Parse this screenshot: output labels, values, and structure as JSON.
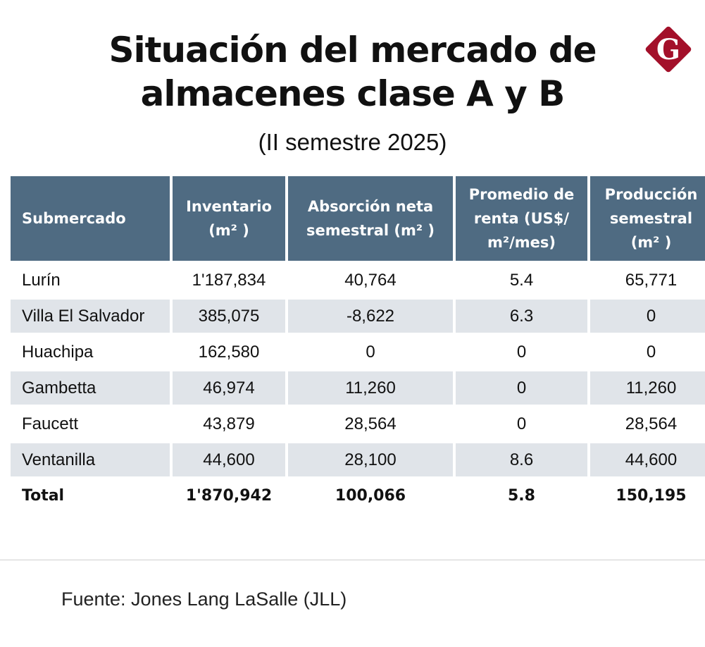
{
  "header": {
    "title_line1": "Situación del mercado de",
    "title_line2": "almacenes clase A y B",
    "subtitle": "(II semestre 2025)",
    "logo_letter": "G",
    "logo_color": "#a3102a"
  },
  "colors": {
    "header_fill": "#4f6b82",
    "row_shade": "#e0e4e9"
  },
  "chart_data": {
    "type": "table",
    "columns": [
      "Submercado",
      "Inventario (m² )",
      "Absorción neta semestral (m² )",
      "Promedio de renta (US$/ m²/mes)",
      "Producción semestral (m² )"
    ],
    "rows": [
      [
        "Lurín",
        "1'187,834",
        "40,764",
        "5.4",
        "65,771"
      ],
      [
        "Villa El Salvador",
        "385,075",
        "-8,622",
        "6.3",
        "0"
      ],
      [
        "Huachipa",
        "162,580",
        "0",
        "0",
        "0"
      ],
      [
        "Gambetta",
        "46,974",
        "11,260",
        "0",
        "11,260"
      ],
      [
        "Faucett",
        "43,879",
        "28,564",
        "0",
        "28,564"
      ],
      [
        "Ventanilla",
        "44,600",
        "28,100",
        "8.6",
        "44,600"
      ],
      [
        "Total",
        "1'870,942",
        "100,066",
        "5.8",
        "150,195"
      ]
    ]
  },
  "footer": {
    "source": "Fuente: Jones Lang LaSalle (JLL)"
  }
}
